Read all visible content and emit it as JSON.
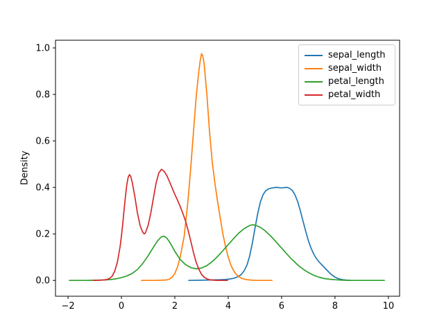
{
  "figure": {
    "background": "#ffffff",
    "axes_frame_color": "#000000",
    "tick_label_color": "#000000"
  },
  "chart_data": {
    "type": "line",
    "subtype": "kde-density-plot",
    "title": "",
    "xlabel": "",
    "ylabel": "Density",
    "xlim": [
      -2.47,
      10.42
    ],
    "ylim": [
      -0.068,
      1.033
    ],
    "grid": false,
    "legend_position": "upper right",
    "x_ticks": [
      -2,
      0,
      2,
      4,
      6,
      8,
      10
    ],
    "x_tick_labels": [
      "−2",
      "0",
      "2",
      "4",
      "6",
      "8",
      "10"
    ],
    "y_ticks": [
      0.0,
      0.2,
      0.4,
      0.6,
      0.8,
      1.0
    ],
    "y_tick_labels": [
      "0.0",
      "0.2",
      "0.4",
      "0.6",
      "0.8",
      "1.0"
    ],
    "series": [
      {
        "name": "sepal_length",
        "color": "#1f77b4",
        "peak": {
          "x": 5.8,
          "density": 0.4
        },
        "points": [
          [
            2.52,
            0
          ],
          [
            3.0,
            0.001
          ],
          [
            3.4,
            0.002
          ],
          [
            3.7,
            0.003
          ],
          [
            3.9,
            0.004
          ],
          [
            4.0,
            0.005
          ],
          [
            4.1,
            0.007
          ],
          [
            4.2,
            0.009
          ],
          [
            4.3,
            0.013
          ],
          [
            4.4,
            0.018
          ],
          [
            4.5,
            0.027
          ],
          [
            4.6,
            0.042
          ],
          [
            4.7,
            0.065
          ],
          [
            4.8,
            0.103
          ],
          [
            4.9,
            0.158
          ],
          [
            5.0,
            0.222
          ],
          [
            5.1,
            0.285
          ],
          [
            5.2,
            0.335
          ],
          [
            5.3,
            0.368
          ],
          [
            5.4,
            0.385
          ],
          [
            5.5,
            0.393
          ],
          [
            5.6,
            0.397
          ],
          [
            5.8,
            0.4
          ],
          [
            6.0,
            0.398
          ],
          [
            6.2,
            0.4
          ],
          [
            6.3,
            0.396
          ],
          [
            6.4,
            0.387
          ],
          [
            6.5,
            0.368
          ],
          [
            6.6,
            0.34
          ],
          [
            6.7,
            0.3
          ],
          [
            6.8,
            0.256
          ],
          [
            6.9,
            0.212
          ],
          [
            7.0,
            0.172
          ],
          [
            7.1,
            0.14
          ],
          [
            7.2,
            0.114
          ],
          [
            7.3,
            0.095
          ],
          [
            7.4,
            0.08
          ],
          [
            7.5,
            0.068
          ],
          [
            7.6,
            0.056
          ],
          [
            7.7,
            0.044
          ],
          [
            7.8,
            0.032
          ],
          [
            7.9,
            0.022
          ],
          [
            8.0,
            0.014
          ],
          [
            8.1,
            0.009
          ],
          [
            8.2,
            0.005
          ],
          [
            8.3,
            0.003
          ],
          [
            8.45,
            0.001
          ],
          [
            8.6,
            0
          ]
        ]
      },
      {
        "name": "sepal_width",
        "color": "#ff7f0e",
        "peak": {
          "x": 3.0,
          "density": 0.975
        },
        "points": [
          [
            0.75,
            0
          ],
          [
            1.2,
            0
          ],
          [
            1.5,
            0.001
          ],
          [
            1.7,
            0.002
          ],
          [
            1.8,
            0.006
          ],
          [
            1.9,
            0.014
          ],
          [
            2.0,
            0.03
          ],
          [
            2.1,
            0.058
          ],
          [
            2.2,
            0.1
          ],
          [
            2.35,
            0.19
          ],
          [
            2.5,
            0.35
          ],
          [
            2.6,
            0.49
          ],
          [
            2.7,
            0.64
          ],
          [
            2.8,
            0.79
          ],
          [
            2.9,
            0.9
          ],
          [
            2.95,
            0.945
          ],
          [
            3.0,
            0.975
          ],
          [
            3.05,
            0.965
          ],
          [
            3.1,
            0.93
          ],
          [
            3.2,
            0.8
          ],
          [
            3.3,
            0.64
          ],
          [
            3.4,
            0.51
          ],
          [
            3.5,
            0.42
          ],
          [
            3.6,
            0.34
          ],
          [
            3.7,
            0.27
          ],
          [
            3.8,
            0.2
          ],
          [
            3.9,
            0.145
          ],
          [
            4.0,
            0.1
          ],
          [
            4.1,
            0.066
          ],
          [
            4.2,
            0.042
          ],
          [
            4.3,
            0.026
          ],
          [
            4.4,
            0.016
          ],
          [
            4.5,
            0.009
          ],
          [
            4.7,
            0.003
          ],
          [
            4.9,
            0.001
          ],
          [
            5.1,
            0
          ],
          [
            5.64,
            0
          ]
        ]
      },
      {
        "name": "petal_length",
        "color": "#2ca02c",
        "peak": {
          "x": 4.9,
          "density": 0.24
        },
        "points": [
          [
            -1.95,
            0
          ],
          [
            -1.3,
            0
          ],
          [
            -0.9,
            0.001
          ],
          [
            -0.6,
            0.002
          ],
          [
            -0.4,
            0.004
          ],
          [
            -0.2,
            0.007
          ],
          [
            0.0,
            0.012
          ],
          [
            0.2,
            0.019
          ],
          [
            0.4,
            0.03
          ],
          [
            0.6,
            0.047
          ],
          [
            0.8,
            0.073
          ],
          [
            1.0,
            0.106
          ],
          [
            1.2,
            0.143
          ],
          [
            1.35,
            0.17
          ],
          [
            1.5,
            0.188
          ],
          [
            1.6,
            0.19
          ],
          [
            1.7,
            0.182
          ],
          [
            1.8,
            0.166
          ],
          [
            1.9,
            0.146
          ],
          [
            2.0,
            0.125
          ],
          [
            2.2,
            0.09
          ],
          [
            2.4,
            0.068
          ],
          [
            2.6,
            0.055
          ],
          [
            2.8,
            0.05
          ],
          [
            3.0,
            0.053
          ],
          [
            3.2,
            0.064
          ],
          [
            3.4,
            0.081
          ],
          [
            3.6,
            0.103
          ],
          [
            3.8,
            0.128
          ],
          [
            4.0,
            0.154
          ],
          [
            4.2,
            0.18
          ],
          [
            4.4,
            0.204
          ],
          [
            4.6,
            0.223
          ],
          [
            4.8,
            0.236
          ],
          [
            4.9,
            0.239
          ],
          [
            5.0,
            0.238
          ],
          [
            5.2,
            0.229
          ],
          [
            5.4,
            0.212
          ],
          [
            5.6,
            0.19
          ],
          [
            5.8,
            0.165
          ],
          [
            6.0,
            0.139
          ],
          [
            6.2,
            0.113
          ],
          [
            6.4,
            0.089
          ],
          [
            6.6,
            0.067
          ],
          [
            6.8,
            0.049
          ],
          [
            7.0,
            0.034
          ],
          [
            7.2,
            0.022
          ],
          [
            7.4,
            0.014
          ],
          [
            7.6,
            0.008
          ],
          [
            7.8,
            0.005
          ],
          [
            8.0,
            0.003
          ],
          [
            8.3,
            0.001
          ],
          [
            8.6,
            0
          ],
          [
            9.85,
            0
          ]
        ]
      },
      {
        "name": "petal_width",
        "color": "#d62728",
        "peak": {
          "x": 1.5,
          "density": 0.48
        },
        "points": [
          [
            -1.06,
            0
          ],
          [
            -0.8,
            0.001
          ],
          [
            -0.65,
            0.002
          ],
          [
            -0.55,
            0.004
          ],
          [
            -0.45,
            0.008
          ],
          [
            -0.35,
            0.018
          ],
          [
            -0.25,
            0.04
          ],
          [
            -0.15,
            0.08
          ],
          [
            -0.05,
            0.145
          ],
          [
            0.0,
            0.19
          ],
          [
            0.05,
            0.245
          ],
          [
            0.1,
            0.305
          ],
          [
            0.15,
            0.36
          ],
          [
            0.2,
            0.41
          ],
          [
            0.25,
            0.443
          ],
          [
            0.3,
            0.455
          ],
          [
            0.35,
            0.447
          ],
          [
            0.4,
            0.425
          ],
          [
            0.5,
            0.362
          ],
          [
            0.6,
            0.29
          ],
          [
            0.7,
            0.235
          ],
          [
            0.8,
            0.207
          ],
          [
            0.85,
            0.2
          ],
          [
            0.9,
            0.205
          ],
          [
            1.0,
            0.237
          ],
          [
            1.1,
            0.29
          ],
          [
            1.2,
            0.355
          ],
          [
            1.3,
            0.42
          ],
          [
            1.4,
            0.462
          ],
          [
            1.5,
            0.478
          ],
          [
            1.6,
            0.469
          ],
          [
            1.7,
            0.451
          ],
          [
            1.8,
            0.425
          ],
          [
            1.9,
            0.397
          ],
          [
            2.0,
            0.37
          ],
          [
            2.1,
            0.345
          ],
          [
            2.2,
            0.318
          ],
          [
            2.3,
            0.289
          ],
          [
            2.4,
            0.256
          ],
          [
            2.5,
            0.215
          ],
          [
            2.6,
            0.168
          ],
          [
            2.7,
            0.12
          ],
          [
            2.8,
            0.078
          ],
          [
            2.9,
            0.048
          ],
          [
            3.0,
            0.026
          ],
          [
            3.1,
            0.014
          ],
          [
            3.2,
            0.007
          ],
          [
            3.3,
            0.003
          ],
          [
            3.45,
            0.001
          ],
          [
            3.6,
            0
          ],
          [
            3.97,
            0
          ]
        ]
      }
    ]
  }
}
